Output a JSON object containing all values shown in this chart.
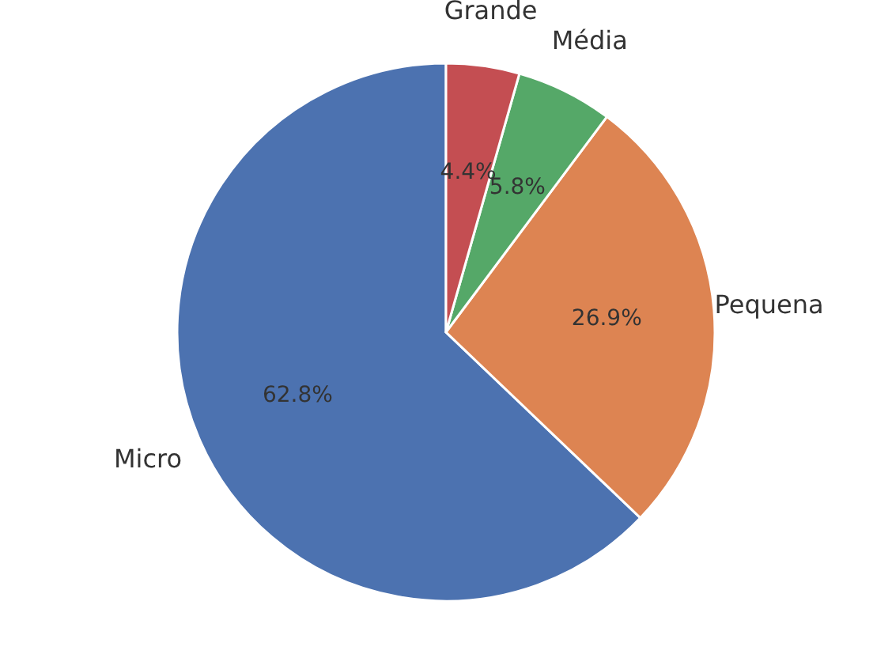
{
  "chart_data": {
    "type": "pie",
    "categories": [
      "Micro",
      "Pequena",
      "Média",
      "Grande"
    ],
    "values": [
      62.8,
      26.9,
      5.8,
      4.4
    ],
    "colors": [
      "#4c72b0",
      "#dd8452",
      "#55a868",
      "#c44e52"
    ],
    "value_labels": [
      "62.8%",
      "26.9%",
      "5.8%",
      "4.4%"
    ],
    "legend": false
  }
}
